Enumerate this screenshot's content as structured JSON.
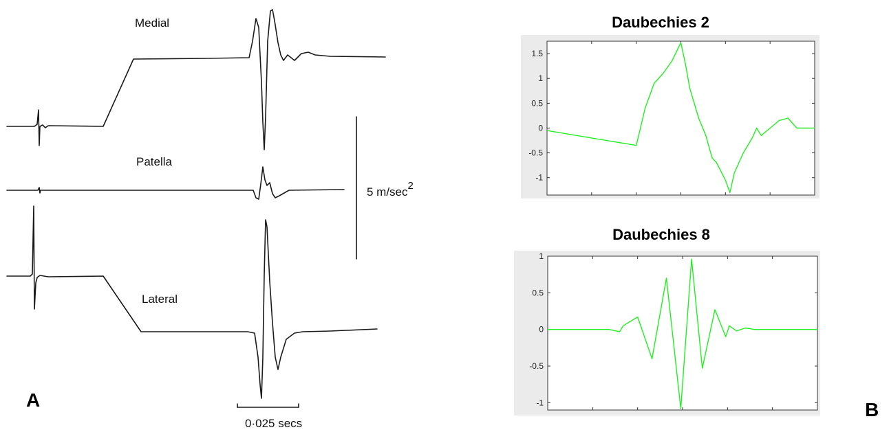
{
  "panel_a": {
    "letter": "A",
    "traces": [
      {
        "name": "Medial"
      },
      {
        "name": "Patella"
      },
      {
        "name": "Lateral"
      }
    ],
    "scale_bar_vertical": {
      "label_main": "5 m/sec",
      "label_sup": "2"
    },
    "scale_bar_horizontal": {
      "label": "0·025 secs"
    }
  },
  "panel_b": {
    "letter": "B"
  },
  "chart_data": [
    {
      "type": "line",
      "title": "Daubechies 2",
      "xlabel": "",
      "ylabel": "",
      "xlim": [
        0,
        3
      ],
      "ylim": [
        -1.35,
        1.75
      ],
      "yticks": [
        -1,
        -0.5,
        0,
        0.5,
        1,
        1.5
      ],
      "ytick_labels": [
        "-1",
        "-0.5",
        "0",
        "0.5",
        "1",
        "1.5"
      ],
      "grid": false,
      "series": [
        {
          "color": "#22ee22",
          "x": [
            0,
            0.5,
            1.0,
            1.02,
            1.1,
            1.2,
            1.3,
            1.4,
            1.5,
            1.55,
            1.6,
            1.7,
            1.78,
            1.85,
            1.9,
            2.0,
            2.05,
            2.1,
            2.2,
            2.3,
            2.35,
            2.4,
            2.5,
            2.6,
            2.7,
            2.8,
            3.0
          ],
          "y": [
            -0.05,
            -0.2,
            -0.35,
            -0.2,
            0.4,
            0.9,
            1.1,
            1.35,
            1.72,
            1.3,
            0.8,
            0.2,
            -0.15,
            -0.6,
            -0.7,
            -1.05,
            -1.3,
            -0.9,
            -0.5,
            -0.2,
            0.0,
            -0.15,
            0.0,
            0.15,
            0.2,
            0.0,
            0.0
          ]
        }
      ]
    },
    {
      "type": "line",
      "title": "Daubechies 8",
      "xlabel": "",
      "ylabel": "",
      "xlim": [
        0,
        15
      ],
      "ylim": [
        -1.1,
        1.0
      ],
      "yticks": [
        -1,
        -0.5,
        0,
        0.5,
        1
      ],
      "ytick_labels": [
        "-1",
        "-0.5",
        "0",
        "0.5",
        "1"
      ],
      "grid": false,
      "series": [
        {
          "color": "#22ee22",
          "x": [
            0,
            3.4,
            4.0,
            4.2,
            5.0,
            5.8,
            6.6,
            7.4,
            8.0,
            8.6,
            9.3,
            9.9,
            10.1,
            10.5,
            11.0,
            11.5,
            12.0,
            15.0
          ],
          "y": [
            0,
            0,
            -0.03,
            0.05,
            0.17,
            -0.4,
            0.7,
            -1.08,
            0.96,
            -0.53,
            0.27,
            -0.1,
            0.05,
            -0.02,
            0.02,
            0.0,
            0.0,
            0.0
          ]
        }
      ]
    }
  ]
}
